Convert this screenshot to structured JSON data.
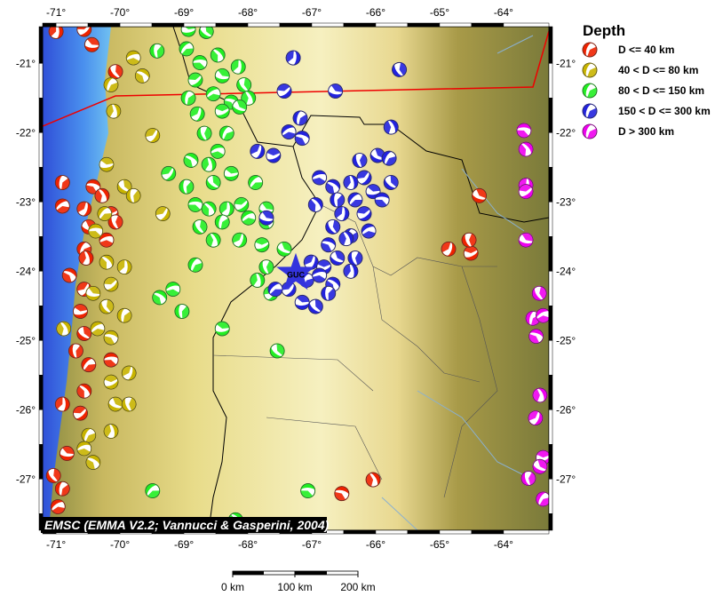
{
  "map": {
    "bounds": {
      "lon_min": -71.21,
      "lon_max": -63.29,
      "lat_min": -27.74,
      "lat_max": -20.47
    },
    "lon_ticks": [
      -71,
      -70,
      -69,
      -68,
      -67,
      -66,
      -65,
      -64
    ],
    "lat_ticks": [
      -21,
      -22,
      -23,
      -24,
      -25,
      -26,
      -27
    ],
    "lon_tick_labels": [
      "-71°",
      "-70°",
      "-69°",
      "-68°",
      "-67°",
      "-66°",
      "-65°",
      "-64°"
    ],
    "lat_tick_labels": [
      "-21°",
      "-22°",
      "-23°",
      "-24°",
      "-25°",
      "-26°",
      "-27°"
    ],
    "station": {
      "code": "GUC",
      "lon": -67.25,
      "lat": -24.03,
      "color": "#3333dd"
    },
    "credit": "EMSC (EMMA V2.2; Vannucci & Gasperini, 2004)",
    "scale_bar": {
      "labels": [
        "0 km",
        "100 km",
        "200 km"
      ]
    }
  },
  "legend": {
    "title": "Depth",
    "items": [
      {
        "label": "D <= 40 km",
        "color": "#ee2200"
      },
      {
        "label": "40 < D <= 80 km",
        "color": "#c8b400"
      },
      {
        "label": "80 < D <= 150 km",
        "color": "#22ee22"
      },
      {
        "label": "150 < D <= 300 km",
        "color": "#2222dd"
      },
      {
        "label": "D > 300 km",
        "color": "#ee00ee"
      }
    ]
  },
  "events": {
    "d40": [
      [
        -71.0,
        -20.54
      ],
      [
        -70.56,
        -20.51
      ],
      [
        -70.44,
        -20.73
      ],
      [
        -70.07,
        -21.12
      ],
      [
        -70.9,
        -22.72
      ],
      [
        -70.9,
        -23.06
      ],
      [
        -70.42,
        -22.78
      ],
      [
        -70.28,
        -22.91
      ],
      [
        -70.56,
        -23.1
      ],
      [
        -70.14,
        -23.17
      ],
      [
        -70.49,
        -23.36
      ],
      [
        -70.07,
        -23.29
      ],
      [
        -70.56,
        -23.68
      ],
      [
        -70.21,
        -23.55
      ],
      [
        -70.79,
        -24.06
      ],
      [
        -70.53,
        -23.81
      ],
      [
        -70.56,
        -24.26
      ],
      [
        -70.62,
        -24.58
      ],
      [
        -70.56,
        -24.9
      ],
      [
        -70.69,
        -25.15
      ],
      [
        -70.49,
        -25.35
      ],
      [
        -70.14,
        -25.28
      ],
      [
        -70.56,
        -25.73
      ],
      [
        -70.9,
        -25.92
      ],
      [
        -70.62,
        -26.05
      ],
      [
        -70.83,
        -26.63
      ],
      [
        -71.04,
        -26.95
      ],
      [
        -70.9,
        -27.14
      ],
      [
        -70.97,
        -27.4
      ],
      [
        -66.53,
        -27.21
      ],
      [
        -66.04,
        -27.01
      ],
      [
        -64.86,
        -23.68
      ],
      [
        -64.51,
        -23.74
      ],
      [
        -64.38,
        -22.91
      ],
      [
        -64.54,
        -23.55
      ]
    ],
    "d80": [
      [
        -70.14,
        -21.31
      ],
      [
        -69.79,
        -20.92
      ],
      [
        -69.65,
        -21.18
      ],
      [
        -70.1,
        -21.69
      ],
      [
        -69.49,
        -22.04
      ],
      [
        -70.21,
        -22.46
      ],
      [
        -69.93,
        -22.78
      ],
      [
        -69.79,
        -22.91
      ],
      [
        -70.24,
        -23.17
      ],
      [
        -70.38,
        -23.42
      ],
      [
        -70.21,
        -23.87
      ],
      [
        -69.93,
        -23.94
      ],
      [
        -70.14,
        -24.19
      ],
      [
        -70.42,
        -24.32
      ],
      [
        -70.21,
        -24.51
      ],
      [
        -69.93,
        -24.64
      ],
      [
        -70.35,
        -24.83
      ],
      [
        -70.14,
        -24.96
      ],
      [
        -70.88,
        -24.83
      ],
      [
        -69.86,
        -25.47
      ],
      [
        -70.14,
        -25.6
      ],
      [
        -70.07,
        -25.92
      ],
      [
        -69.86,
        -25.92
      ],
      [
        -70.49,
        -26.37
      ],
      [
        -70.56,
        -26.56
      ],
      [
        -70.42,
        -26.76
      ],
      [
        -70.14,
        -26.31
      ],
      [
        -69.33,
        -23.17
      ]
    ],
    "d150": [
      [
        -68.93,
        -20.51
      ],
      [
        -68.65,
        -20.54
      ],
      [
        -69.42,
        -20.82
      ],
      [
        -68.96,
        -20.79
      ],
      [
        -68.75,
        -20.99
      ],
      [
        -68.47,
        -20.88
      ],
      [
        -68.15,
        -21.05
      ],
      [
        -68.82,
        -21.24
      ],
      [
        -68.4,
        -21.18
      ],
      [
        -68.06,
        -21.31
      ],
      [
        -68.93,
        -21.5
      ],
      [
        -68.54,
        -21.44
      ],
      [
        -68.26,
        -21.56
      ],
      [
        -67.99,
        -21.5
      ],
      [
        -68.79,
        -21.73
      ],
      [
        -68.4,
        -21.69
      ],
      [
        -68.13,
        -21.63
      ],
      [
        -68.68,
        -22.01
      ],
      [
        -68.33,
        -22.01
      ],
      [
        -68.47,
        -22.27
      ],
      [
        -68.89,
        -22.4
      ],
      [
        -68.61,
        -22.46
      ],
      [
        -69.24,
        -22.59
      ],
      [
        -68.26,
        -22.59
      ],
      [
        -68.54,
        -22.72
      ],
      [
        -68.96,
        -22.78
      ],
      [
        -67.88,
        -22.72
      ],
      [
        -68.82,
        -23.04
      ],
      [
        -68.61,
        -23.1
      ],
      [
        -68.33,
        -23.1
      ],
      [
        -68.1,
        -23.04
      ],
      [
        -67.71,
        -23.1
      ],
      [
        -68.75,
        -23.36
      ],
      [
        -68.4,
        -23.29
      ],
      [
        -67.99,
        -23.23
      ],
      [
        -67.71,
        -23.29
      ],
      [
        -68.54,
        -23.55
      ],
      [
        -68.13,
        -23.55
      ],
      [
        -67.78,
        -23.62
      ],
      [
        -67.43,
        -23.68
      ],
      [
        -67.71,
        -23.94
      ],
      [
        -68.82,
        -23.91
      ],
      [
        -69.17,
        -24.26
      ],
      [
        -69.38,
        -24.38
      ],
      [
        -67.85,
        -24.13
      ],
      [
        -67.64,
        -24.32
      ],
      [
        -68.4,
        -24.83
      ],
      [
        -67.54,
        -25.15
      ],
      [
        -69.03,
        -24.58
      ],
      [
        -69.49,
        -27.17
      ],
      [
        -67.06,
        -27.17
      ],
      [
        -68.19,
        -27.59
      ]
    ],
    "d300": [
      [
        -67.29,
        -20.92
      ],
      [
        -67.43,
        -21.4
      ],
      [
        -66.63,
        -21.4
      ],
      [
        -65.63,
        -21.09
      ],
      [
        -67.18,
        -21.79
      ],
      [
        -67.36,
        -21.99
      ],
      [
        -67.15,
        -22.08
      ],
      [
        -65.76,
        -21.92
      ],
      [
        -67.85,
        -22.27
      ],
      [
        -67.6,
        -22.33
      ],
      [
        -65.97,
        -22.33
      ],
      [
        -66.25,
        -22.4
      ],
      [
        -65.79,
        -22.37
      ],
      [
        -66.88,
        -22.65
      ],
      [
        -66.67,
        -22.78
      ],
      [
        -66.39,
        -22.72
      ],
      [
        -66.18,
        -22.65
      ],
      [
        -66.04,
        -22.85
      ],
      [
        -65.76,
        -22.72
      ],
      [
        -66.6,
        -22.97
      ],
      [
        -66.32,
        -22.97
      ],
      [
        -65.9,
        -22.97
      ],
      [
        -66.94,
        -23.04
      ],
      [
        -66.53,
        -23.17
      ],
      [
        -66.18,
        -23.17
      ],
      [
        -67.71,
        -23.23
      ],
      [
        -66.67,
        -23.36
      ],
      [
        -66.39,
        -23.49
      ],
      [
        -66.11,
        -23.42
      ],
      [
        -66.74,
        -23.62
      ],
      [
        -66.46,
        -23.53
      ],
      [
        -67.01,
        -23.87
      ],
      [
        -66.81,
        -23.94
      ],
      [
        -66.6,
        -23.81
      ],
      [
        -66.32,
        -23.81
      ],
      [
        -67.08,
        -24.13
      ],
      [
        -66.88,
        -24.06
      ],
      [
        -66.67,
        -24.19
      ],
      [
        -66.39,
        -24.0
      ],
      [
        -67.36,
        -24.26
      ],
      [
        -67.15,
        -24.45
      ],
      [
        -66.94,
        -24.51
      ],
      [
        -66.74,
        -24.32
      ],
      [
        -67.57,
        -24.26
      ]
    ],
    "deep": [
      [
        -63.68,
        -21.97
      ],
      [
        -63.65,
        -22.24
      ],
      [
        -63.65,
        -22.76
      ],
      [
        -63.65,
        -22.85
      ],
      [
        -63.65,
        -23.55
      ],
      [
        -63.44,
        -24.32
      ],
      [
        -63.54,
        -24.68
      ],
      [
        -63.38,
        -24.64
      ],
      [
        -63.49,
        -24.94
      ],
      [
        -63.43,
        -25.79
      ],
      [
        -63.5,
        -26.12
      ],
      [
        -63.38,
        -26.69
      ],
      [
        -63.43,
        -26.82
      ],
      [
        -63.61,
        -26.99
      ],
      [
        -63.38,
        -27.29
      ]
    ]
  }
}
